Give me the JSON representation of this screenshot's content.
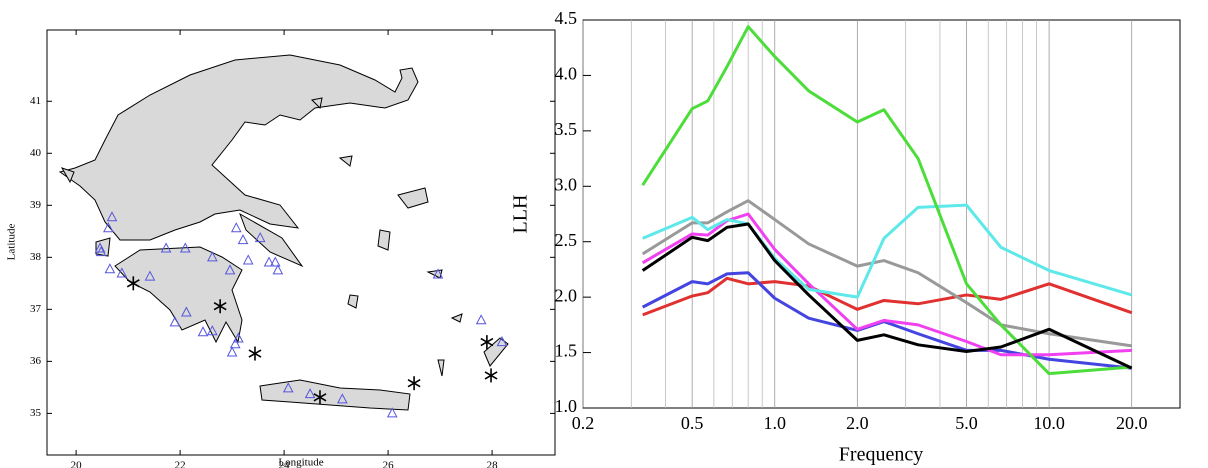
{
  "chart_data": [
    {
      "type": "map",
      "xlabel": "Longitude",
      "ylabel": "Latitude",
      "xlim": [
        19.44,
        29.21
      ],
      "ylim": [
        34.2,
        42.37
      ],
      "xticks": [
        20,
        22,
        24,
        26,
        28
      ],
      "yticks": [
        35,
        36,
        37,
        38,
        39,
        40,
        41
      ],
      "series": [
        {
          "marker": "triangle",
          "color": "#5555dd",
          "x": [
            20.69,
            20.62,
            20.46,
            20.48,
            20.65,
            20.88,
            21.42,
            21.73,
            22.1,
            22.62,
            22.96,
            23.08,
            23.21,
            23.54,
            23.31,
            23.71,
            23.83,
            23.88,
            21.9,
            22.12,
            22.44,
            22.62,
            23.12,
            23.06,
            23.0,
            24.08,
            24.5,
            25.12,
            26.08,
            26.96,
            27.79,
            28.19
          ],
          "values": [
            38.77,
            38.56,
            38.17,
            38.1,
            37.77,
            37.69,
            37.63,
            38.17,
            38.17,
            38.0,
            37.75,
            38.56,
            38.33,
            38.37,
            37.94,
            37.9,
            37.9,
            37.75,
            36.75,
            36.94,
            36.56,
            36.58,
            36.44,
            36.33,
            36.17,
            35.48,
            35.37,
            35.27,
            35.0,
            37.67,
            36.79,
            36.37
          ]
        },
        {
          "marker": "asterisk",
          "color": "#000000",
          "x": [
            21.1,
            22.77,
            23.44,
            24.69,
            26.5,
            27.9,
            27.98
          ],
          "values": [
            37.5,
            37.06,
            36.15,
            35.31,
            35.58,
            36.37,
            35.73
          ]
        }
      ]
    },
    {
      "type": "line",
      "xlabel": "Frequency",
      "ylabel": "LLH",
      "log_x": true,
      "grid_x": true,
      "xlim": [
        0.2,
        30
      ],
      "ylim": [
        1,
        4.5
      ],
      "xticks": [
        0.2,
        0.5,
        {
          "value": 1,
          "label": "1.0"
        },
        {
          "value": 2,
          "label": "2.0"
        },
        {
          "value": 5,
          "label": "5.0"
        },
        {
          "value": 10,
          "label": "10.0"
        },
        {
          "value": 20,
          "label": "20.0"
        }
      ],
      "x_minor_ticks": [
        0.3,
        0.4,
        0.6,
        0.7,
        0.8,
        0.9,
        3,
        4,
        6,
        7,
        8,
        9
      ],
      "yticks": [
        {
          "value": 1,
          "label": "1.0"
        },
        1.5,
        {
          "value": 2,
          "label": "2.0"
        },
        2.5,
        {
          "value": 3,
          "label": "3.0"
        },
        3.5,
        {
          "value": 4,
          "label": "4.0"
        },
        4.5
      ],
      "x": [
        0.33,
        0.5,
        0.57,
        0.67,
        0.8,
        1.0,
        1.33,
        2.0,
        2.5,
        3.33,
        5.0,
        6.67,
        10.0,
        20.0
      ],
      "series": [
        {
          "color": "#e03030",
          "values": [
            1.84,
            2.01,
            2.04,
            2.17,
            2.12,
            2.14,
            2.1,
            1.89,
            1.97,
            1.94,
            2.02,
            1.98,
            2.12,
            1.86
          ]
        },
        {
          "color": "#4444e0",
          "values": [
            1.91,
            2.14,
            2.12,
            2.21,
            2.22,
            1.99,
            1.81,
            1.7,
            1.78,
            1.67,
            1.52,
            1.52,
            1.44,
            1.36
          ]
        },
        {
          "color": "#f040f0",
          "values": [
            2.31,
            2.57,
            2.56,
            2.69,
            2.75,
            2.43,
            2.12,
            1.71,
            1.79,
            1.75,
            1.6,
            1.48,
            1.48,
            1.52
          ]
        },
        {
          "color": "#999999",
          "values": [
            2.39,
            2.67,
            2.67,
            2.77,
            2.87,
            2.7,
            2.48,
            2.28,
            2.33,
            2.22,
            1.95,
            1.75,
            1.67,
            1.56
          ]
        },
        {
          "color": "#5de8ea",
          "values": [
            2.53,
            2.72,
            2.61,
            2.7,
            2.66,
            2.35,
            2.07,
            2.0,
            2.53,
            2.81,
            2.83,
            2.45,
            2.24,
            2.02
          ]
        },
        {
          "color": "#4cdd3a",
          "values": [
            3.01,
            3.7,
            3.77,
            4.08,
            4.44,
            4.17,
            3.86,
            3.58,
            3.69,
            3.25,
            2.12,
            1.75,
            1.31,
            1.37
          ]
        },
        {
          "color": "#000000",
          "values": [
            2.24,
            2.54,
            2.51,
            2.63,
            2.66,
            2.33,
            2.02,
            1.61,
            1.66,
            1.57,
            1.51,
            1.55,
            1.71,
            1.36
          ]
        }
      ]
    }
  ]
}
